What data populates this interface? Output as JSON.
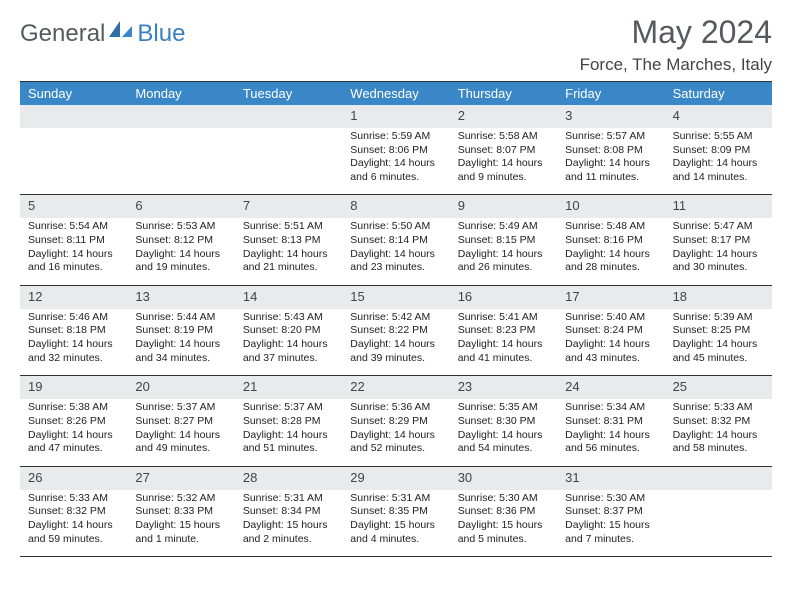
{
  "logo": {
    "text1": "General",
    "text2": "Blue"
  },
  "title": "May 2024",
  "location": "Force, The Marches, Italy",
  "header_bg": "#3a87c7",
  "daynum_bg": "#e9eaeb",
  "days_of_week": [
    "Sunday",
    "Monday",
    "Tuesday",
    "Wednesday",
    "Thursday",
    "Friday",
    "Saturday"
  ],
  "weeks": [
    [
      {
        "n": "",
        "lines": []
      },
      {
        "n": "",
        "lines": []
      },
      {
        "n": "",
        "lines": []
      },
      {
        "n": "1",
        "lines": [
          "Sunrise: 5:59 AM",
          "Sunset: 8:06 PM",
          "Daylight: 14 hours and 6 minutes."
        ]
      },
      {
        "n": "2",
        "lines": [
          "Sunrise: 5:58 AM",
          "Sunset: 8:07 PM",
          "Daylight: 14 hours and 9 minutes."
        ]
      },
      {
        "n": "3",
        "lines": [
          "Sunrise: 5:57 AM",
          "Sunset: 8:08 PM",
          "Daylight: 14 hours and 11 minutes."
        ]
      },
      {
        "n": "4",
        "lines": [
          "Sunrise: 5:55 AM",
          "Sunset: 8:09 PM",
          "Daylight: 14 hours and 14 minutes."
        ]
      }
    ],
    [
      {
        "n": "5",
        "lines": [
          "Sunrise: 5:54 AM",
          "Sunset: 8:11 PM",
          "Daylight: 14 hours and 16 minutes."
        ]
      },
      {
        "n": "6",
        "lines": [
          "Sunrise: 5:53 AM",
          "Sunset: 8:12 PM",
          "Daylight: 14 hours and 19 minutes."
        ]
      },
      {
        "n": "7",
        "lines": [
          "Sunrise: 5:51 AM",
          "Sunset: 8:13 PM",
          "Daylight: 14 hours and 21 minutes."
        ]
      },
      {
        "n": "8",
        "lines": [
          "Sunrise: 5:50 AM",
          "Sunset: 8:14 PM",
          "Daylight: 14 hours and 23 minutes."
        ]
      },
      {
        "n": "9",
        "lines": [
          "Sunrise: 5:49 AM",
          "Sunset: 8:15 PM",
          "Daylight: 14 hours and 26 minutes."
        ]
      },
      {
        "n": "10",
        "lines": [
          "Sunrise: 5:48 AM",
          "Sunset: 8:16 PM",
          "Daylight: 14 hours and 28 minutes."
        ]
      },
      {
        "n": "11",
        "lines": [
          "Sunrise: 5:47 AM",
          "Sunset: 8:17 PM",
          "Daylight: 14 hours and 30 minutes."
        ]
      }
    ],
    [
      {
        "n": "12",
        "lines": [
          "Sunrise: 5:46 AM",
          "Sunset: 8:18 PM",
          "Daylight: 14 hours and 32 minutes."
        ]
      },
      {
        "n": "13",
        "lines": [
          "Sunrise: 5:44 AM",
          "Sunset: 8:19 PM",
          "Daylight: 14 hours and 34 minutes."
        ]
      },
      {
        "n": "14",
        "lines": [
          "Sunrise: 5:43 AM",
          "Sunset: 8:20 PM",
          "Daylight: 14 hours and 37 minutes."
        ]
      },
      {
        "n": "15",
        "lines": [
          "Sunrise: 5:42 AM",
          "Sunset: 8:22 PM",
          "Daylight: 14 hours and 39 minutes."
        ]
      },
      {
        "n": "16",
        "lines": [
          "Sunrise: 5:41 AM",
          "Sunset: 8:23 PM",
          "Daylight: 14 hours and 41 minutes."
        ]
      },
      {
        "n": "17",
        "lines": [
          "Sunrise: 5:40 AM",
          "Sunset: 8:24 PM",
          "Daylight: 14 hours and 43 minutes."
        ]
      },
      {
        "n": "18",
        "lines": [
          "Sunrise: 5:39 AM",
          "Sunset: 8:25 PM",
          "Daylight: 14 hours and 45 minutes."
        ]
      }
    ],
    [
      {
        "n": "19",
        "lines": [
          "Sunrise: 5:38 AM",
          "Sunset: 8:26 PM",
          "Daylight: 14 hours and 47 minutes."
        ]
      },
      {
        "n": "20",
        "lines": [
          "Sunrise: 5:37 AM",
          "Sunset: 8:27 PM",
          "Daylight: 14 hours and 49 minutes."
        ]
      },
      {
        "n": "21",
        "lines": [
          "Sunrise: 5:37 AM",
          "Sunset: 8:28 PM",
          "Daylight: 14 hours and 51 minutes."
        ]
      },
      {
        "n": "22",
        "lines": [
          "Sunrise: 5:36 AM",
          "Sunset: 8:29 PM",
          "Daylight: 14 hours and 52 minutes."
        ]
      },
      {
        "n": "23",
        "lines": [
          "Sunrise: 5:35 AM",
          "Sunset: 8:30 PM",
          "Daylight: 14 hours and 54 minutes."
        ]
      },
      {
        "n": "24",
        "lines": [
          "Sunrise: 5:34 AM",
          "Sunset: 8:31 PM",
          "Daylight: 14 hours and 56 minutes."
        ]
      },
      {
        "n": "25",
        "lines": [
          "Sunrise: 5:33 AM",
          "Sunset: 8:32 PM",
          "Daylight: 14 hours and 58 minutes."
        ]
      }
    ],
    [
      {
        "n": "26",
        "lines": [
          "Sunrise: 5:33 AM",
          "Sunset: 8:32 PM",
          "Daylight: 14 hours and 59 minutes."
        ]
      },
      {
        "n": "27",
        "lines": [
          "Sunrise: 5:32 AM",
          "Sunset: 8:33 PM",
          "Daylight: 15 hours and 1 minute."
        ]
      },
      {
        "n": "28",
        "lines": [
          "Sunrise: 5:31 AM",
          "Sunset: 8:34 PM",
          "Daylight: 15 hours and 2 minutes."
        ]
      },
      {
        "n": "29",
        "lines": [
          "Sunrise: 5:31 AM",
          "Sunset: 8:35 PM",
          "Daylight: 15 hours and 4 minutes."
        ]
      },
      {
        "n": "30",
        "lines": [
          "Sunrise: 5:30 AM",
          "Sunset: 8:36 PM",
          "Daylight: 15 hours and 5 minutes."
        ]
      },
      {
        "n": "31",
        "lines": [
          "Sunrise: 5:30 AM",
          "Sunset: 8:37 PM",
          "Daylight: 15 hours and 7 minutes."
        ]
      },
      {
        "n": "",
        "lines": []
      }
    ]
  ]
}
